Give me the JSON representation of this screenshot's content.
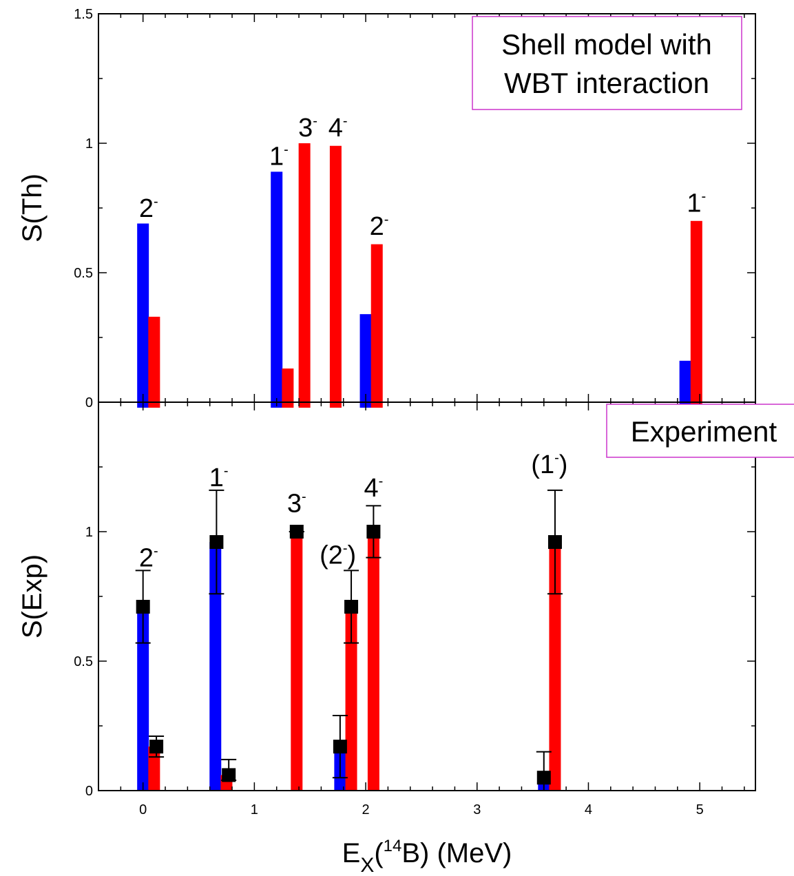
{
  "chart_data": [
    {
      "id": "theory",
      "type": "bar",
      "ylabel": "S(Th)",
      "ylim": [
        0,
        1.5
      ],
      "xlim": [
        -0.4,
        5.5
      ],
      "yticks": [
        "0",
        "0.5",
        "1",
        "1.5"
      ],
      "annotation_lines": [
        "Shell model with",
        "WBT interaction"
      ],
      "annotation_color": "#cc33cc",
      "colors": {
        "blue": "#0000ff",
        "red": "#ff0000"
      },
      "series": [
        {
          "color": "blue",
          "points": [
            {
              "x": 0.0,
              "y": 0.69
            },
            {
              "x": 1.2,
              "y": 0.89
            },
            {
              "x": 2.0,
              "y": 0.34
            },
            {
              "x": 4.87,
              "y": 0.16
            }
          ]
        },
        {
          "color": "red",
          "points": [
            {
              "x": 0.1,
              "y": 0.33
            },
            {
              "x": 1.3,
              "y": 0.13
            },
            {
              "x": 1.45,
              "y": 1.0
            },
            {
              "x": 1.73,
              "y": 0.99
            },
            {
              "x": 2.1,
              "y": 0.61
            },
            {
              "x": 4.97,
              "y": 0.7
            }
          ]
        }
      ],
      "state_labels": [
        {
          "x": 0.05,
          "y": 0.7,
          "base": "2",
          "sup": "-"
        },
        {
          "x": 1.22,
          "y": 0.9,
          "base": "1",
          "sup": "-"
        },
        {
          "x": 1.48,
          "y": 1.01,
          "base": "3",
          "sup": "-"
        },
        {
          "x": 1.75,
          "y": 1.01,
          "base": "4",
          "sup": "-"
        },
        {
          "x": 2.12,
          "y": 0.63,
          "base": "2",
          "sup": "-"
        },
        {
          "x": 4.97,
          "y": 0.72,
          "base": "1",
          "sup": "-"
        }
      ]
    },
    {
      "id": "experiment",
      "type": "bar",
      "ylabel": "S(Exp)",
      "xlabel_parts": [
        "E",
        "X",
        "(",
        "14",
        "B) (MeV)"
      ],
      "ylim": [
        0,
        1.5
      ],
      "xlim": [
        -0.4,
        5.5
      ],
      "xticks": [
        "0",
        "1",
        "2",
        "3",
        "4",
        "5"
      ],
      "yticks": [
        "0",
        "0.5",
        "1"
      ],
      "annotation_lines": [
        "Experiment"
      ],
      "annotation_color": "#cc33cc",
      "colors": {
        "blue": "#0000ff",
        "red": "#ff0000"
      },
      "series": [
        {
          "color": "blue",
          "points": [
            {
              "x": 0.0,
              "y": 0.71
            },
            {
              "x": 0.65,
              "y": 0.96
            },
            {
              "x": 1.77,
              "y": 0.17
            },
            {
              "x": 3.6,
              "y": 0.05
            }
          ]
        },
        {
          "color": "red",
          "points": [
            {
              "x": 0.1,
              "y": 0.17
            },
            {
              "x": 0.75,
              "y": 0.06
            },
            {
              "x": 1.38,
              "y": 1.0
            },
            {
              "x": 1.87,
              "y": 0.71
            },
            {
              "x": 2.07,
              "y": 1.0
            },
            {
              "x": 3.7,
              "y": 0.96
            }
          ]
        }
      ],
      "measurements": [
        {
          "x": 0.0,
          "y": 0.71,
          "lo": 0.57,
          "hi": 0.85
        },
        {
          "x": 0.12,
          "y": 0.17,
          "lo": 0.13,
          "hi": 0.21
        },
        {
          "x": 0.66,
          "y": 0.96,
          "lo": 0.76,
          "hi": 1.16
        },
        {
          "x": 0.77,
          "y": 0.06,
          "lo": 0.04,
          "hi": 0.12
        },
        {
          "x": 1.38,
          "y": 1.0,
          "lo": 1.0,
          "hi": 1.0
        },
        {
          "x": 1.77,
          "y": 0.17,
          "lo": 0.05,
          "hi": 0.29
        },
        {
          "x": 1.87,
          "y": 0.71,
          "lo": 0.57,
          "hi": 0.85
        },
        {
          "x": 2.07,
          "y": 1.0,
          "lo": 0.9,
          "hi": 1.1
        },
        {
          "x": 3.6,
          "y": 0.05,
          "lo": 0.0,
          "hi": 0.15
        },
        {
          "x": 3.7,
          "y": 0.96,
          "lo": 0.76,
          "hi": 1.16
        }
      ],
      "state_labels": [
        {
          "x": 0.05,
          "y": 0.85,
          "base": "2",
          "sup": "-"
        },
        {
          "x": 0.68,
          "y": 1.16,
          "base": "1",
          "sup": "-"
        },
        {
          "x": 1.38,
          "y": 1.06,
          "base": "3",
          "sup": "-"
        },
        {
          "x": 1.75,
          "y": 0.86,
          "base": "(2",
          "sup": "-",
          "after": ")"
        },
        {
          "x": 2.07,
          "y": 1.12,
          "base": "4",
          "sup": "-"
        },
        {
          "x": 3.65,
          "y": 1.21,
          "base": "(1",
          "sup": "-",
          "after": ")"
        }
      ]
    }
  ]
}
